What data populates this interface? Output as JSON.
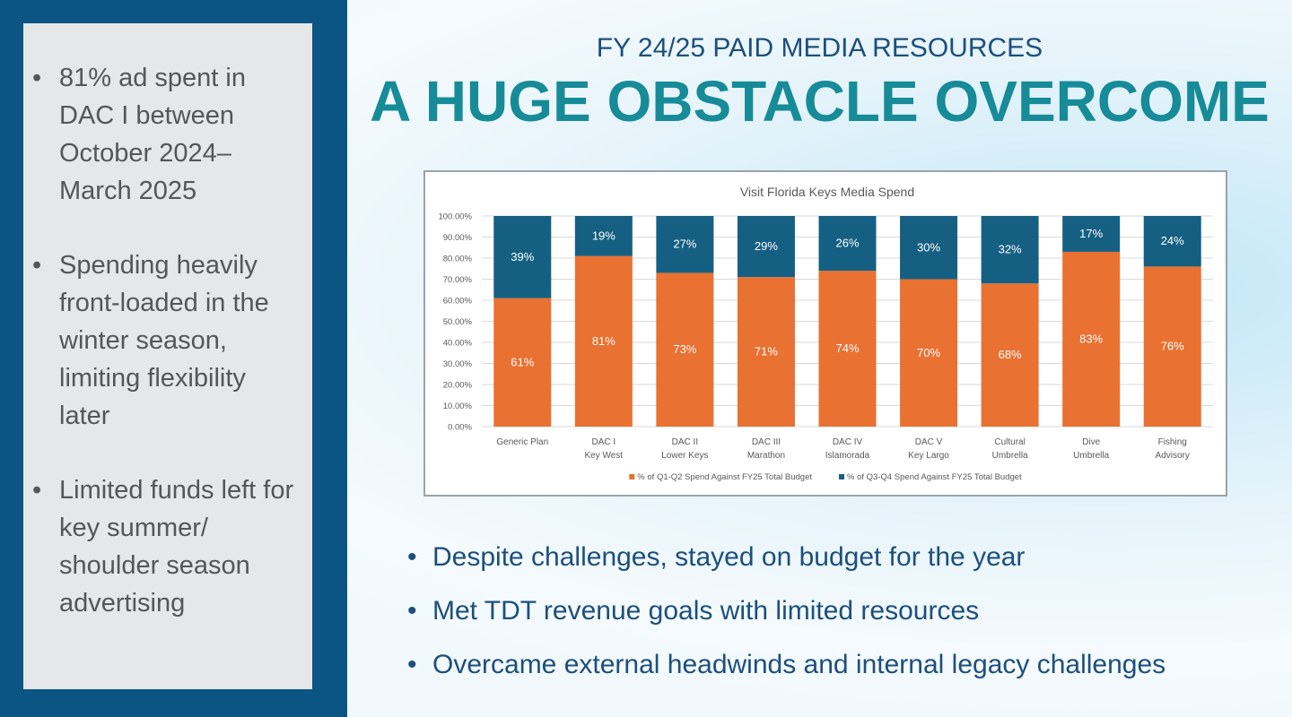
{
  "left_panel": {
    "bullets": [
      "81% ad spent in DAC I between October 2024–March 2025",
      "Spending heavily front-loaded in the winter season, limiting flexibility later",
      "Limited funds left for key summer/ shoulder season advertising"
    ]
  },
  "header": {
    "subtitle": "FY 24/25 PAID MEDIA RESOURCES",
    "title": "A HUGE OBSTACLE OVERCOME"
  },
  "chart_data": {
    "type": "bar",
    "stacked": true,
    "title": "Visit Florida Keys Media Spend",
    "categories": [
      [
        "Generic Plan"
      ],
      [
        "DAC I",
        "Key West"
      ],
      [
        "DAC II",
        "Lower Keys"
      ],
      [
        "DAC III",
        "Marathon"
      ],
      [
        "DAC IV",
        "Islamorada"
      ],
      [
        "DAC V",
        "Key Largo"
      ],
      [
        "Cultural",
        "Umbrella"
      ],
      [
        "Dive",
        "Umbrella"
      ],
      [
        "Fishing",
        "Advisory"
      ]
    ],
    "series": [
      {
        "name": "% of Q1-Q2 Spend Against FY25 Total Budget",
        "color": "#e97132",
        "values": [
          61,
          81,
          73,
          71,
          74,
          70,
          68,
          83,
          76
        ]
      },
      {
        "name": "% of Q3-Q4 Spend Against FY25 Total Budget",
        "color": "#156082",
        "values": [
          39,
          19,
          27,
          29,
          26,
          30,
          32,
          17,
          24
        ]
      }
    ],
    "yticks": [
      "0.00%",
      "10.00%",
      "20.00%",
      "30.00%",
      "40.00%",
      "50.00%",
      "60.00%",
      "70.00%",
      "80.00%",
      "90.00%",
      "100.00%"
    ],
    "ylim": [
      0,
      100
    ],
    "grid": true,
    "legend": "bottom"
  },
  "bullets": [
    "Despite challenges, stayed on budget for the year",
    "Met TDT revenue goals with limited resources",
    "Overcame external headwinds and internal legacy challenges"
  ]
}
